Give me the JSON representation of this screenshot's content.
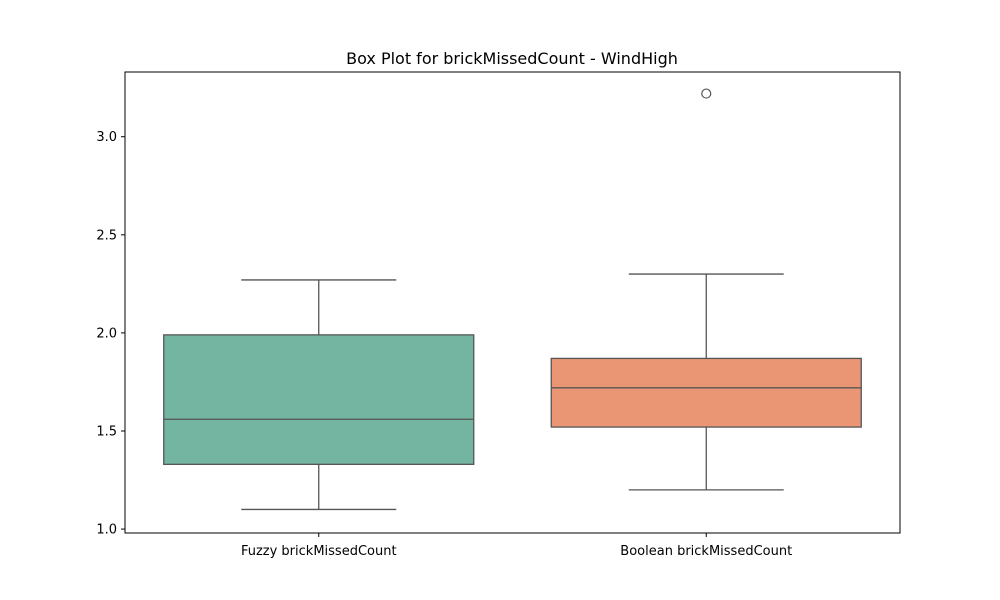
{
  "chart_data": {
    "type": "box",
    "title": "Box Plot for brickMissedCount - WindHigh",
    "xlabel": "",
    "ylabel": "",
    "ylim": [
      0.98,
      3.33
    ],
    "yticks": [
      "1.0",
      "1.5",
      "2.0",
      "2.5",
      "3.0"
    ],
    "grid": false,
    "categories": [
      "Fuzzy brickMissedCount",
      "Boolean brickMissedCount"
    ],
    "series": [
      {
        "whisker_low": 1.1,
        "q1": 1.33,
        "median": 1.56,
        "q3": 1.99,
        "whisker_high": 2.27,
        "outliers": [],
        "color": "#74b5a1"
      },
      {
        "whisker_low": 1.2,
        "q1": 1.52,
        "median": 1.72,
        "q3": 1.87,
        "whisker_high": 2.3,
        "outliers": [
          3.22
        ],
        "color": "#ea9675"
      }
    ],
    "line_color": "#555555",
    "axis_color": "#000000"
  }
}
